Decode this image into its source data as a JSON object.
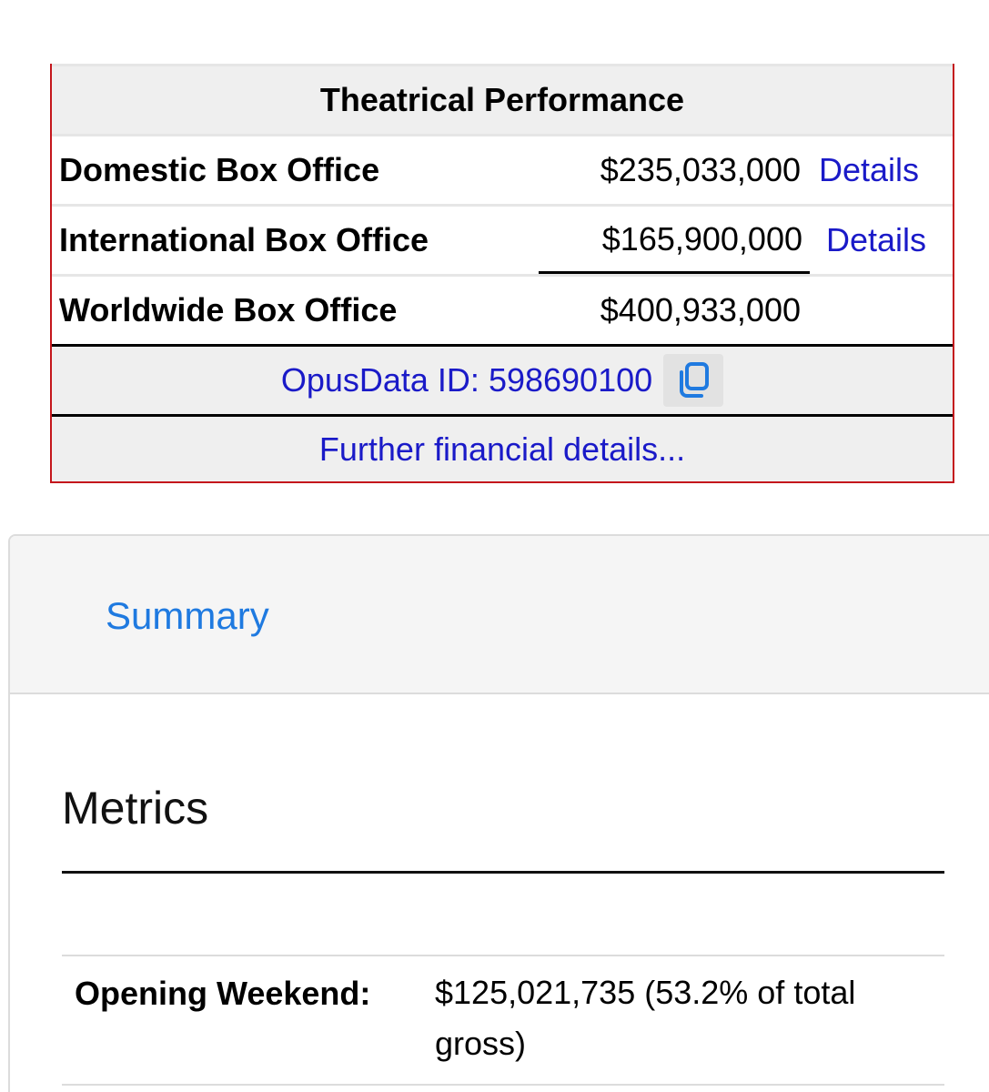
{
  "theatrical": {
    "header": "Theatrical Performance",
    "rows": [
      {
        "label": "Domestic Box Office",
        "amount": "$235,033,000",
        "link": "Details"
      },
      {
        "label": "International Box Office",
        "amount": "$165,900,000",
        "link": "Details"
      },
      {
        "label": "Worldwide Box Office",
        "amount": "$400,933,000"
      }
    ],
    "opusdata_id": "OpusData ID: 598690100",
    "further_link": "Further financial details..."
  },
  "tabs": {
    "summary": "Summary"
  },
  "metrics": {
    "title": "Metrics",
    "rows": [
      {
        "label": "Opening Weekend:",
        "value": "$125,021,735 (53.2% of total gross)"
      }
    ]
  },
  "colors": {
    "border_red": "#c4161c",
    "link_blue": "#1a1ac8",
    "tab_blue": "#1f7ae0"
  },
  "icons": {
    "copy": "copy-icon"
  }
}
